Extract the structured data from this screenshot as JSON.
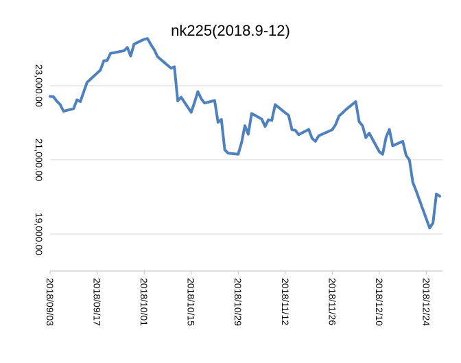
{
  "chart_data": {
    "type": "line",
    "title": "nk225(2018.9-12)",
    "xlabel": "",
    "ylabel": "",
    "x_tick_labels": [
      "2018/09/03",
      "2018/09/17",
      "2018/10/01",
      "2018/10/15",
      "2018/10/29",
      "2018/11/12",
      "2018/11/26",
      "2018/12/10",
      "2018/12/24"
    ],
    "y_tick_values": [
      19000,
      21000,
      23000
    ],
    "y_tick_labels": [
      "19,000.00",
      "21,000.00",
      "23,000.00"
    ],
    "ylim": [
      18000,
      24200
    ],
    "grid": true,
    "legend": "none",
    "series": [
      {
        "color": "#4f81bd",
        "x": [
          "2018/09/03",
          "2018/09/04",
          "2018/09/05",
          "2018/09/06",
          "2018/09/07",
          "2018/09/10",
          "2018/09/11",
          "2018/09/12",
          "2018/09/13",
          "2018/09/14",
          "2018/09/18",
          "2018/09/19",
          "2018/09/20",
          "2018/09/21",
          "2018/09/25",
          "2018/09/26",
          "2018/09/27",
          "2018/09/28",
          "2018/10/01",
          "2018/10/02",
          "2018/10/03",
          "2018/10/04",
          "2018/10/05",
          "2018/10/09",
          "2018/10/10",
          "2018/10/11",
          "2018/10/12",
          "2018/10/15",
          "2018/10/16",
          "2018/10/17",
          "2018/10/18",
          "2018/10/19",
          "2018/10/22",
          "2018/10/23",
          "2018/10/24",
          "2018/10/25",
          "2018/10/26",
          "2018/10/29",
          "2018/10/30",
          "2018/10/31",
          "2018/11/01",
          "2018/11/02",
          "2018/11/05",
          "2018/11/06",
          "2018/11/07",
          "2018/11/08",
          "2018/11/09",
          "2018/11/12",
          "2018/11/13",
          "2018/11/14",
          "2018/11/15",
          "2018/11/16",
          "2018/11/19",
          "2018/11/20",
          "2018/11/21",
          "2018/11/22",
          "2018/11/26",
          "2018/11/27",
          "2018/11/28",
          "2018/11/29",
          "2018/11/30",
          "2018/12/03",
          "2018/12/04",
          "2018/12/05",
          "2018/12/06",
          "2018/12/07",
          "2018/12/10",
          "2018/12/11",
          "2018/12/12",
          "2018/12/13",
          "2018/12/14",
          "2018/12/17",
          "2018/12/18",
          "2018/12/19",
          "2018/12/20",
          "2018/12/21",
          "2018/12/25",
          "2018/12/26",
          "2018/12/27",
          "2018/12/28"
        ],
        "values": [
          22710,
          22700,
          22580,
          22490,
          22310,
          22380,
          22620,
          22570,
          22830,
          23090,
          23420,
          23670,
          23680,
          23870,
          23940,
          24030,
          23800,
          24120,
          24250,
          24270,
          24110,
          23970,
          23780,
          23470,
          23510,
          22590,
          22690,
          22280,
          22550,
          22840,
          22650,
          22530,
          22600,
          22010,
          22090,
          21270,
          21180,
          21150,
          21460,
          21920,
          21690,
          22250,
          22100,
          21900,
          22080,
          22060,
          22490,
          22270,
          22200,
          21810,
          21800,
          21680,
          21820,
          21580,
          21500,
          21650,
          21810,
          21950,
          22180,
          22260,
          22350,
          22570,
          22030,
          21920,
          21600,
          21720,
          21220,
          21150,
          21600,
          21820,
          21380,
          21500,
          21120,
          20990,
          20390,
          20160,
          19160,
          19300,
          20080,
          20020
        ]
      }
    ]
  }
}
